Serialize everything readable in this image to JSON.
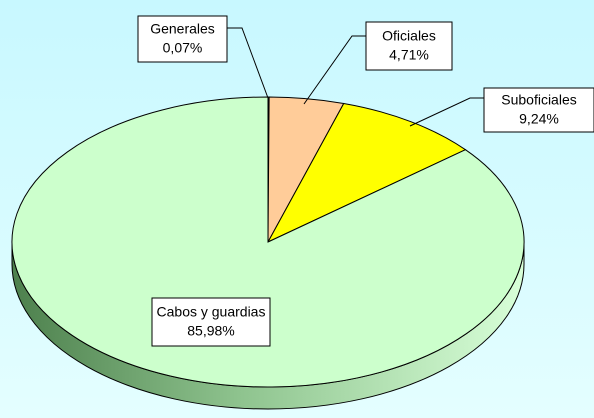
{
  "chart_data": {
    "type": "pie",
    "categories": [
      "Generales",
      "Oficiales",
      "Suboficiales",
      "Cabos y guardias"
    ],
    "values": [
      0.07,
      4.71,
      9.24,
      85.98
    ],
    "value_labels": [
      "0,07%",
      "4,71%",
      "9,24%",
      "85,98%"
    ],
    "colors": [
      "#9999ff",
      "#ffcc99",
      "#ffff00",
      "#ccffcc"
    ]
  }
}
